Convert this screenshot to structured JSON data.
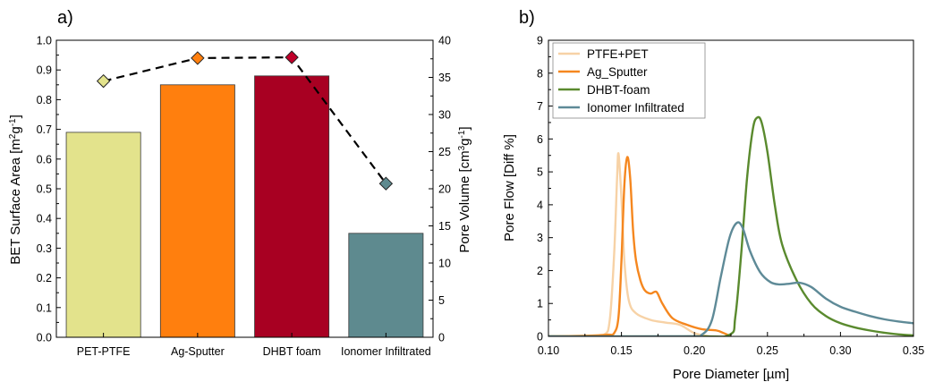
{
  "panel_a_label": "a)",
  "panel_b_label": "b)",
  "chart_data": [
    {
      "type": "bar",
      "panel": "a)",
      "categories": [
        "PET-PTFE",
        "Ag-Sputter",
        "DHBT foam",
        "Ionomer Infiltrated"
      ],
      "series": [
        {
          "values": [
            0.69,
            0.85,
            0.88,
            0.35
          ],
          "colors": [
            "#e3e38c",
            "#ff7f0e",
            "#a80022",
            "#5e8a8f"
          ],
          "axis": "left"
        },
        {
          "values": [
            34.5,
            37.6,
            37.7,
            20.7
          ],
          "colors": [
            "#e3e38c",
            "#ff7f0e",
            "#c0002a",
            "#5e8a8f"
          ],
          "axis": "right",
          "style": "dashed-line-diamond"
        }
      ],
      "ylabel": "BET Surface Area [m²g⁻¹]",
      "ylabel_main": "BET Surface Area [m",
      "ylabel_sup1": "2",
      "ylabel_mid": "g",
      "ylabel_sup2": "-1",
      "ylabel_end": "]",
      "y2label": "Pore Volume [cm³g⁻¹]",
      "y2label_main": "Pore Volume [cm",
      "y2label_sup1": "3",
      "y2label_mid": "g",
      "y2label_sup2": "-1",
      "y2label_end": "]",
      "ylim": [
        0,
        1.0
      ],
      "yticks": [
        "0.0",
        "0.1",
        "0.2",
        "0.3",
        "0.4",
        "0.5",
        "0.6",
        "0.7",
        "0.8",
        "0.9",
        "1.0"
      ],
      "y2lim": [
        0,
        40
      ],
      "y2ticks": [
        "0",
        "5",
        "10",
        "15",
        "20",
        "25",
        "30",
        "35",
        "40"
      ],
      "grid": false
    },
    {
      "type": "line",
      "panel": "b)",
      "xlabel": "Pore Diameter [µm]",
      "ylabel": "Pore Flow [Diff %]",
      "xlim": [
        0.1,
        0.35
      ],
      "ylim": [
        0,
        9
      ],
      "xticks": [
        "0.10",
        "0.15",
        "0.20",
        "0.25",
        "0.30",
        "0.35"
      ],
      "yticks": [
        "0",
        "1",
        "2",
        "3",
        "4",
        "5",
        "6",
        "7",
        "8",
        "9"
      ],
      "legend_position": "top-left",
      "grid": false,
      "series": [
        {
          "name": "PTFE+PET",
          "color": "#f7d2a6",
          "x": [
            0.1,
            0.125,
            0.138,
            0.142,
            0.145,
            0.147,
            0.148,
            0.15,
            0.152,
            0.155,
            0.16,
            0.17,
            0.18,
            0.19,
            0.2,
            0.21
          ],
          "y": [
            0.0,
            0.0,
            0.05,
            0.5,
            2.5,
            4.8,
            5.55,
            4.2,
            2.3,
            1.1,
            0.7,
            0.5,
            0.42,
            0.35,
            0.1,
            0.0
          ]
        },
        {
          "name": "Ag_Sputter",
          "color": "#f5871f",
          "x": [
            0.1,
            0.125,
            0.14,
            0.145,
            0.148,
            0.15,
            0.152,
            0.154,
            0.156,
            0.158,
            0.16,
            0.163,
            0.166,
            0.17,
            0.174,
            0.178,
            0.185,
            0.195,
            0.205,
            0.215,
            0.22,
            0.225
          ],
          "y": [
            0.0,
            0.02,
            0.05,
            0.1,
            0.6,
            2.3,
            4.6,
            5.45,
            4.8,
            3.2,
            2.3,
            1.7,
            1.4,
            1.3,
            1.35,
            1.0,
            0.55,
            0.35,
            0.22,
            0.18,
            0.1,
            0.0
          ]
        },
        {
          "name": "DHBT-foam",
          "color": "#5a8a2e",
          "x": [
            0.1,
            0.2,
            0.224,
            0.228,
            0.232,
            0.236,
            0.24,
            0.243,
            0.246,
            0.25,
            0.255,
            0.26,
            0.27,
            0.28,
            0.29,
            0.3,
            0.31,
            0.32,
            0.33,
            0.34,
            0.35
          ],
          "y": [
            0.0,
            0.0,
            0.05,
            0.6,
            2.5,
            4.8,
            6.3,
            6.65,
            6.5,
            5.6,
            4.0,
            2.8,
            1.7,
            1.0,
            0.62,
            0.4,
            0.27,
            0.18,
            0.11,
            0.06,
            0.03
          ]
        },
        {
          "name": "Ionomer Infiltrated",
          "color": "#5e8a97",
          "x": [
            0.1,
            0.195,
            0.205,
            0.212,
            0.218,
            0.224,
            0.229,
            0.233,
            0.238,
            0.245,
            0.252,
            0.258,
            0.265,
            0.272,
            0.28,
            0.29,
            0.3,
            0.31,
            0.32,
            0.33,
            0.34,
            0.35
          ],
          "y": [
            0.0,
            0.0,
            0.05,
            0.5,
            1.8,
            3.0,
            3.45,
            3.3,
            2.6,
            1.95,
            1.65,
            1.58,
            1.6,
            1.63,
            1.5,
            1.15,
            0.9,
            0.75,
            0.62,
            0.52,
            0.45,
            0.4
          ]
        }
      ]
    }
  ]
}
